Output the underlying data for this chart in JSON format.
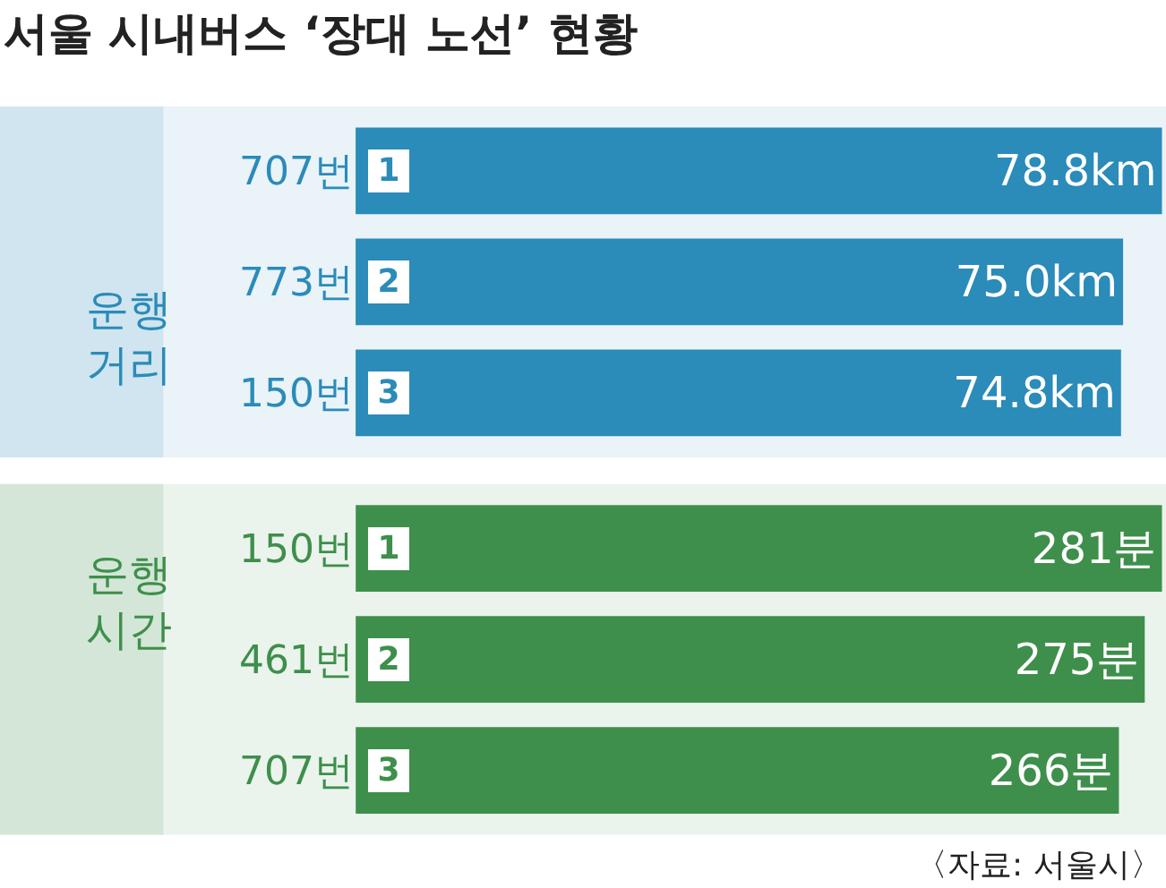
{
  "chart_data": [
    {
      "type": "bar",
      "orientation": "horizontal",
      "title": "서울 시내버스 ‘장대 노선’ 현황",
      "ylabel": "운행 거리",
      "color": "#2b8bb9",
      "categories": [
        "707번",
        "773번",
        "150번"
      ],
      "values": [
        78.8,
        75.0,
        74.8
      ],
      "value_labels": [
        "78.8km",
        "75.0km",
        "74.8km"
      ],
      "annotations": [
        {
          "text": "1",
          "y": "707번"
        },
        {
          "text": "2",
          "y": "773번"
        },
        {
          "text": "3",
          "y": "150번"
        }
      ],
      "grid": false
    },
    {
      "type": "bar",
      "orientation": "horizontal",
      "ylabel": "운행 시간",
      "color": "#3e8f4b",
      "categories": [
        "150번",
        "461번",
        "707번"
      ],
      "values": [
        281,
        275,
        266
      ],
      "value_labels": [
        "281분",
        "275분",
        "266분"
      ],
      "annotations": [
        {
          "text": "1",
          "y": "150번"
        },
        {
          "text": "2",
          "y": "461번"
        },
        {
          "text": "3",
          "y": "707번"
        },
        "〈자료: 서울시〉"
      ],
      "grid": false
    }
  ]
}
